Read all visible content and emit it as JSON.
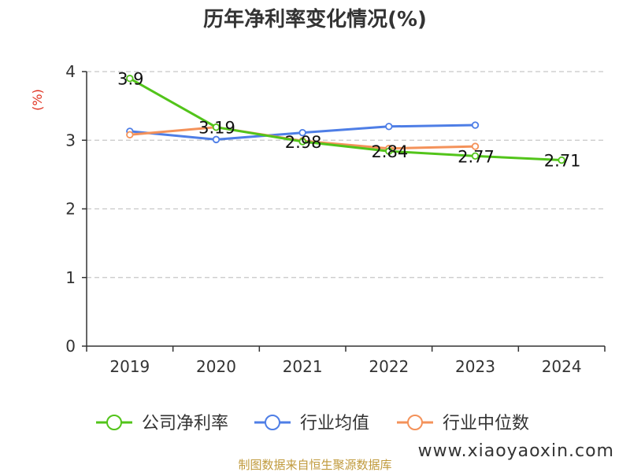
{
  "chart_data": {
    "type": "line",
    "title": "历年净利率变化情况(%)",
    "ylabel": "(%)",
    "xlabel": "",
    "ylim": [
      0,
      4
    ],
    "yticks": [
      0,
      1,
      2,
      3,
      4
    ],
    "grid": true,
    "legend_position": "bottom",
    "categories": [
      "2019",
      "2020",
      "2021",
      "2022",
      "2023",
      "2024"
    ],
    "series": [
      {
        "name": "公司净利率",
        "color": "#52c41a",
        "values": [
          3.9,
          3.19,
          2.98,
          2.84,
          2.77,
          2.71
        ],
        "labels": [
          "3.9",
          "3.19",
          "2.98",
          "2.84",
          "2.77",
          "2.71"
        ]
      },
      {
        "name": "行业均值",
        "color": "#4e7ee6",
        "values": [
          3.13,
          3.01,
          3.11,
          3.2,
          3.22,
          null
        ]
      },
      {
        "name": "行业中位数",
        "color": "#f4925a",
        "values": [
          3.08,
          3.19,
          2.99,
          2.88,
          2.91,
          null
        ]
      }
    ]
  },
  "source": "制图数据来自恒生聚源数据库",
  "source_color": "#c09a3c",
  "ylabel_color": "#e0301e",
  "watermark": "www.xiaoyaoxin.com"
}
